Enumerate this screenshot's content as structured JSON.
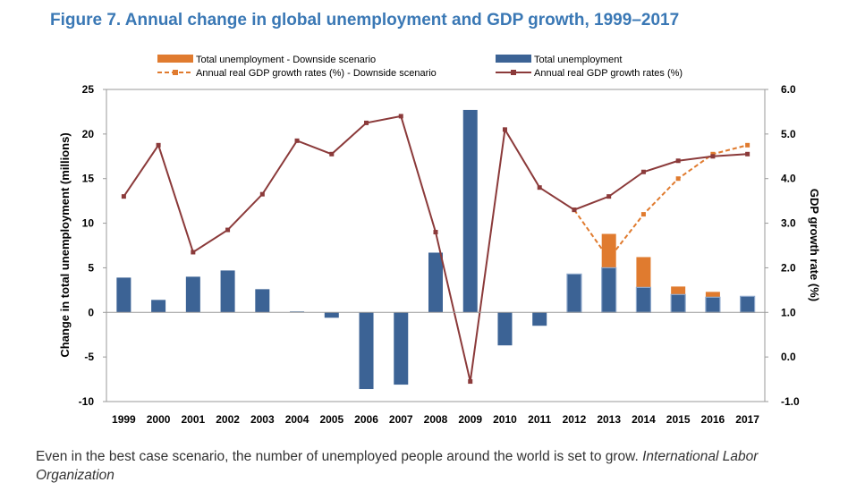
{
  "title": "Figure 7. Annual change in global unemployment and GDP growth, 1999–2017",
  "caption": {
    "text": "Even in the best case scenario, the number of unemployed people around the world is set to grow.",
    "source": "International Labor Organization"
  },
  "colors": {
    "title": "#3a78b5",
    "bar": "#3c6395",
    "downside_bar": "#e07b2f",
    "gdp_line": "#8b3a3a",
    "downside_line": "#e07b2f"
  },
  "chart_data": {
    "type": "bar",
    "categories": [
      "1999",
      "2000",
      "2001",
      "2002",
      "2003",
      "2004",
      "2005",
      "2006",
      "2007",
      "2008",
      "2009",
      "2010",
      "2011",
      "2012",
      "2013",
      "2014",
      "2015",
      "2016",
      "2017"
    ],
    "ylabel": "Change in total unemployment (millions)",
    "y2label": "GDP growth rate (%)",
    "ylim": [
      -10,
      25
    ],
    "y2lim": [
      -1,
      6
    ],
    "yticks": [
      "25",
      "20",
      "15",
      "10",
      "5",
      "0",
      "-5",
      "-10"
    ],
    "y2ticks": [
      "6.0",
      "5.0",
      "4.0",
      "3.0",
      "2.0",
      "1.0",
      "0.0",
      "-1.0"
    ],
    "grid": false,
    "legend_position": "top",
    "series": [
      {
        "name": "Total unemployment - Downside scenario",
        "kind": "bar",
        "values": [
          null,
          null,
          null,
          null,
          null,
          null,
          null,
          null,
          null,
          null,
          null,
          null,
          null,
          null,
          8.8,
          6.2,
          2.9,
          2.3,
          1.8
        ]
      },
      {
        "name": "Total unemployment",
        "kind": "bar",
        "values": [
          3.9,
          1.4,
          4.0,
          4.7,
          2.6,
          0.1,
          -0.6,
          -8.6,
          -8.1,
          6.7,
          22.7,
          -3.7,
          -1.5,
          4.3,
          5.0,
          2.8,
          2.0,
          1.7,
          1.8
        ]
      },
      {
        "name": "Annual real GDP growth rates (%) - Downside scenario",
        "kind": "line",
        "values": [
          null,
          null,
          null,
          null,
          null,
          null,
          null,
          null,
          null,
          null,
          null,
          null,
          null,
          3.3,
          2.2,
          3.2,
          4.0,
          4.55,
          4.75
        ]
      },
      {
        "name": "Annual real GDP growth rates (%)",
        "kind": "line",
        "values": [
          3.6,
          4.75,
          2.35,
          2.85,
          3.65,
          4.85,
          4.55,
          5.25,
          5.4,
          2.8,
          -0.55,
          5.1,
          3.8,
          3.3,
          3.6,
          4.15,
          4.4,
          4.5,
          4.55
        ]
      }
    ]
  }
}
